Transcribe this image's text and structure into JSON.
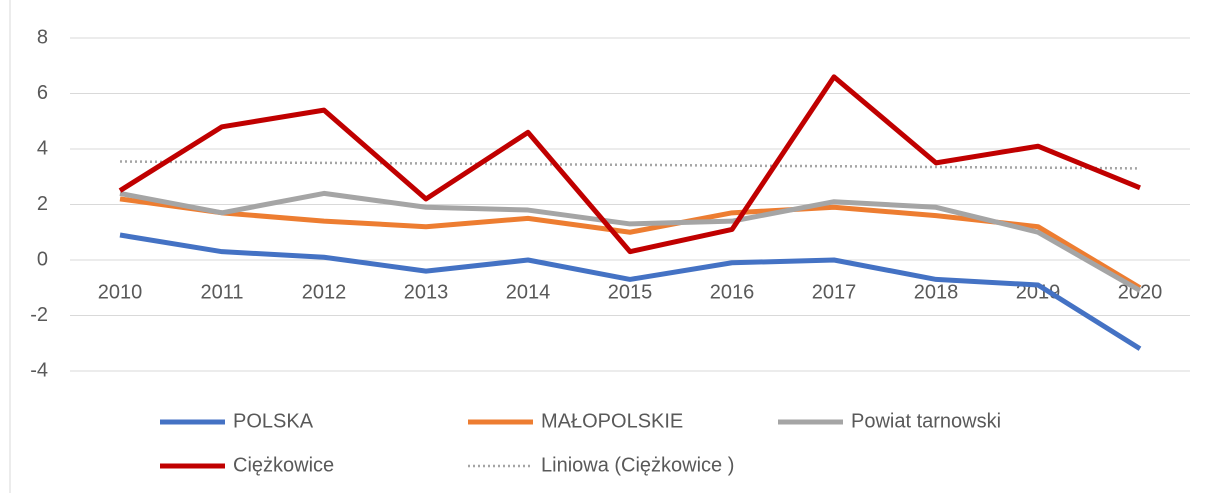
{
  "chart_data": {
    "type": "line",
    "categories": [
      "2010",
      "2011",
      "2012",
      "2013",
      "2014",
      "2015",
      "2016",
      "2017",
      "2018",
      "2019",
      "2020"
    ],
    "series": [
      {
        "name": "POLSKA",
        "color": "#4472c4",
        "values": [
          0.9,
          0.3,
          0.1,
          -0.4,
          0,
          -0.7,
          -0.1,
          0,
          -0.7,
          -0.9,
          -3.2
        ]
      },
      {
        "name": "MAŁOPOLSKIE",
        "color": "#ed7d31",
        "values": [
          2.2,
          1.7,
          1.4,
          1.2,
          1.5,
          1.0,
          1.7,
          1.9,
          1.6,
          1.2,
          -1.0
        ]
      },
      {
        "name": "Powiat tarnowski",
        "color": "#a5a5a5",
        "values": [
          2.4,
          1.7,
          2.4,
          1.9,
          1.8,
          1.3,
          1.4,
          2.1,
          1.9,
          1.0,
          -1.1
        ]
      },
      {
        "name": "Ciężkowice",
        "color": "#c00000",
        "values": [
          2.5,
          4.8,
          5.4,
          2.2,
          4.6,
          0.3,
          1.1,
          6.6,
          3.5,
          4.1,
          2.6
        ]
      },
      {
        "name": "Liniowa (Ciężkowice )",
        "color": "#a5a5a5",
        "dashed": true,
        "values": [
          3.55,
          3.52,
          3.5,
          3.48,
          3.45,
          3.43,
          3.4,
          3.38,
          3.35,
          3.33,
          3.3
        ]
      }
    ],
    "ylim": [
      -4,
      8
    ],
    "yticks": [
      -4,
      -2,
      0,
      2,
      4,
      6,
      8
    ],
    "grid": true,
    "legend": "bottom"
  }
}
